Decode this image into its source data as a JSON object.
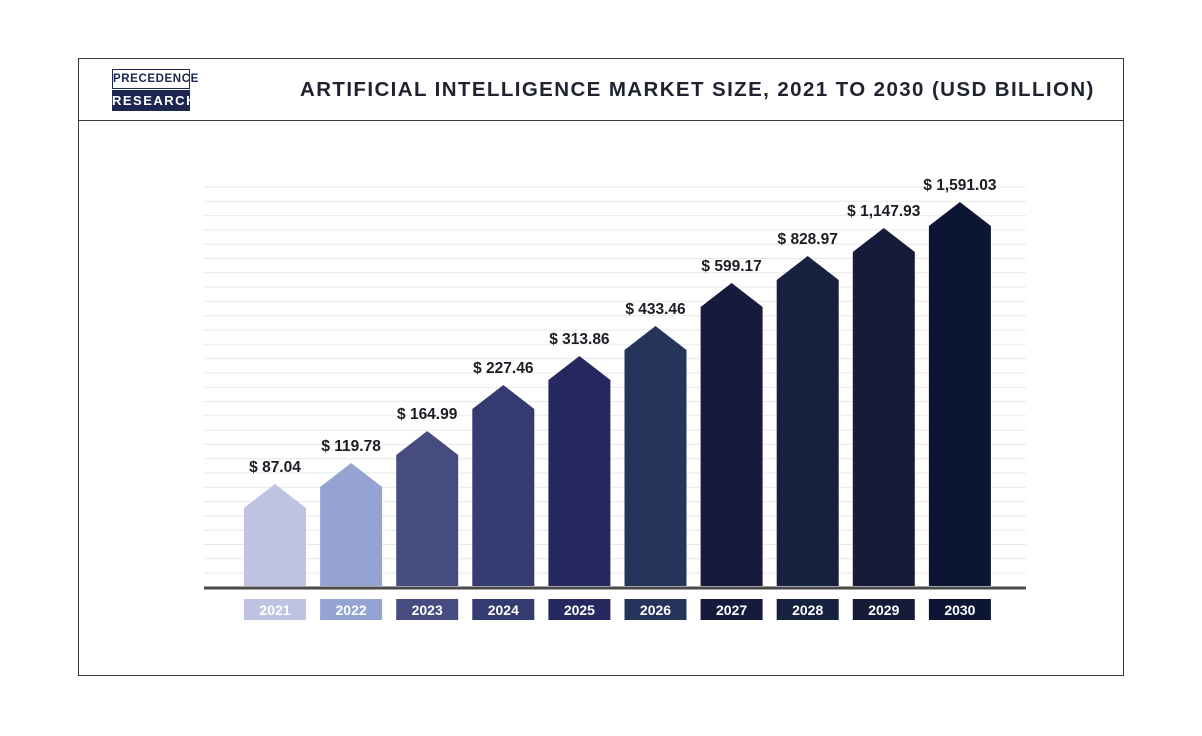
{
  "header": {
    "logo": {
      "line1": "PRECEDENCE",
      "line2": "RESEARCH"
    },
    "title": "ARTIFICIAL INTELLIGENCE MARKET SIZE, 2021 TO 2030 (USD BILLION)"
  },
  "chart_data": {
    "type": "bar",
    "title": "ARTIFICIAL INTELLIGENCE MARKET SIZE, 2021 TO 2030 (USD BILLION)",
    "categories": [
      "2021",
      "2022",
      "2023",
      "2024",
      "2025",
      "2026",
      "2027",
      "2028",
      "2029",
      "2030"
    ],
    "values": [
      87.04,
      119.78,
      164.99,
      227.46,
      313.86,
      433.46,
      599.17,
      828.97,
      1147.93,
      1591.03
    ],
    "value_labels": [
      "$ 87.04",
      "$ 119.78",
      "$ 164.99",
      "$ 227.46",
      "$ 313.86",
      "$ 433.46",
      "$ 599.17",
      "$ 828.97",
      "$ 1,147.93",
      "$ 1,591.03"
    ],
    "xlabel": "",
    "ylabel": "",
    "grid": true,
    "legend": "none",
    "colors": [
      "#bec3e2",
      "#95a3d2",
      "#474c80",
      "#343b70",
      "#252960",
      "#26345c",
      "#161b3e",
      "#172241",
      "#161b3a",
      "#0d1535"
    ]
  }
}
